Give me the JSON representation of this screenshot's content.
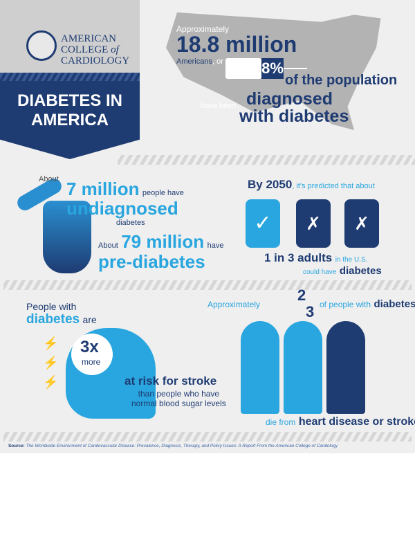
{
  "header": {
    "logo_line1": "AMERICAN",
    "logo_line2": "COLLEGE",
    "logo_of": "of",
    "logo_line3": "CARDIOLOGY",
    "title_line1": "DIABETES IN",
    "title_line2": "AMERICA"
  },
  "diagnosed": {
    "approx": "Approximately",
    "number": "18.8 million",
    "americans": "Americans",
    "or": ", or",
    "percent": "8%",
    "population": "of the population",
    "have_been": "have been",
    "diagnosed": "diagnosed",
    "with_diabetes": "with diabetes"
  },
  "undiagnosed": {
    "about": "About",
    "number": "7 million",
    "people_have": "people have",
    "undiagnosed": "undiagnosed",
    "diabetes": "diabetes",
    "about2": "About",
    "number2": "79 million",
    "have": "have",
    "prediabetes": "pre-diabetes"
  },
  "projection": {
    "by": "By 2050",
    "predicted": ", it's predicted that about",
    "one_in_three": "1 in 3 adults",
    "in_us": "in the U.S.",
    "could_have": "could have",
    "diabetes": "diabetes"
  },
  "stroke": {
    "people_with": "People with",
    "diabetes_are": "diabetes",
    "are": "are",
    "multiplier": "3x",
    "more": "more",
    "at_risk": "at risk for stroke",
    "than": "than people who have",
    "normal": "normal blood sugar levels"
  },
  "heart": {
    "approx": "Approximately",
    "numerator": "2",
    "denominator": "3",
    "of_people": "of people with",
    "diabetes": "diabetes",
    "die_from": "die from",
    "cause": "heart disease or stroke"
  },
  "footer": {
    "source_label": "Source:",
    "source_text": "The Worldwide Environment of Cardiovascular Disease: Prevalence, Diagnosis, Therapy, and Policy Issues: A Report From the American College of Cardiology"
  },
  "colors": {
    "navy": "#1e3b72",
    "blue": "#29a6df",
    "gray": "#efefef"
  }
}
